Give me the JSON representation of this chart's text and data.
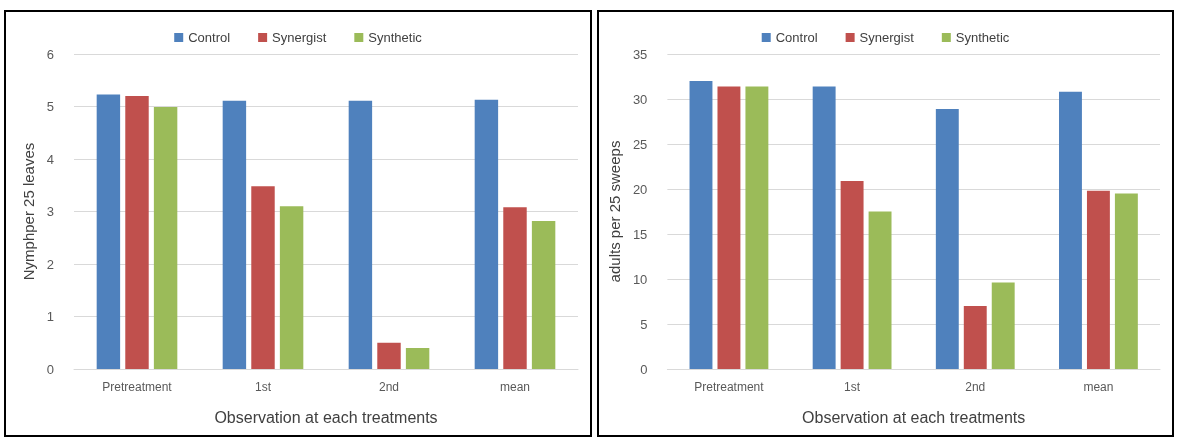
{
  "chart_data": [
    {
      "type": "bar",
      "categories": [
        "Pretreatment",
        "1st",
        "2nd",
        "mean"
      ],
      "xlabel": "Observation at each treatments",
      "ylabel": "Nymphper 25 leaves",
      "ylim": [
        0,
        6
      ],
      "yticks": [
        0,
        1,
        2,
        3,
        4,
        5,
        6
      ],
      "grid": "y",
      "legend": "top",
      "series": [
        {
          "name": "Control",
          "color": "#4f81bd",
          "values": [
            5.23,
            5.11,
            5.11,
            5.13
          ]
        },
        {
          "name": "Synergist",
          "color": "#c0504d",
          "values": [
            5.2,
            3.48,
            0.5,
            3.08
          ]
        },
        {
          "name": "Synthetic",
          "color": "#9bbb59",
          "values": [
            4.99,
            3.1,
            0.4,
            2.82
          ]
        }
      ]
    },
    {
      "type": "bar",
      "categories": [
        "Pretreatment",
        "1st",
        "2nd",
        "mean"
      ],
      "xlabel": "Observation at each treatments",
      "ylabel": "adults per 25 sweeps",
      "ylim": [
        0,
        35
      ],
      "yticks": [
        0,
        5,
        10,
        15,
        20,
        25,
        30,
        35
      ],
      "grid": "y",
      "legend": "top",
      "series": [
        {
          "name": "Control",
          "color": "#4f81bd",
          "values": [
            32,
            31.4,
            28.9,
            30.8
          ]
        },
        {
          "name": "Synergist",
          "color": "#c0504d",
          "values": [
            31.4,
            20.9,
            7,
            19.8
          ]
        },
        {
          "name": "Synthetic",
          "color": "#9bbb59",
          "values": [
            31.4,
            17.5,
            9.6,
            19.5
          ]
        }
      ]
    }
  ]
}
